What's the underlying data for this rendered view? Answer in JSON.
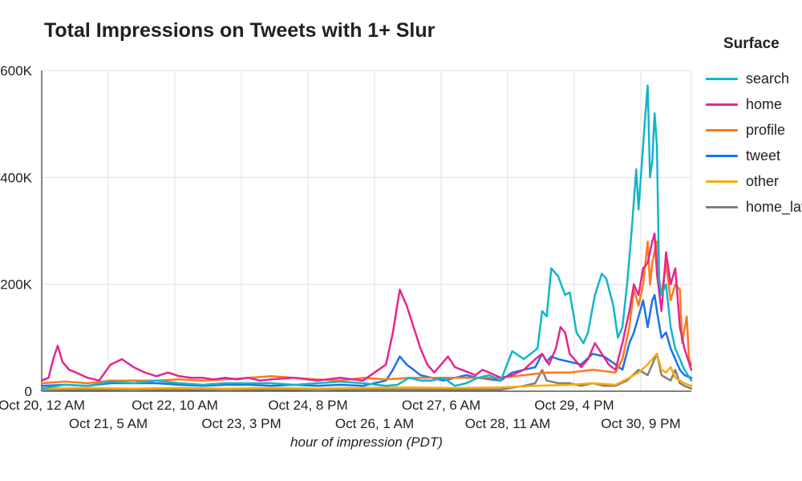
{
  "chart_data": {
    "type": "line",
    "title": "Total Impressions on Tweets with 1+ Slur",
    "xlabel": "hour of impression (PDT)",
    "ylabel": "",
    "legend_title": "Surface",
    "legend_position": "right",
    "grid": true,
    "x_tick_labels": [
      "Oct 20, 12 AM",
      "Oct 21, 5 AM",
      "Oct 22, 10 AM",
      "Oct 23, 3 PM",
      "Oct 24, 8 PM",
      "Oct 26, 1 AM",
      "Oct 27, 6 AM",
      "Oct 28, 11 AM",
      "Oct 29, 4 PM",
      "Oct 30, 9 PM"
    ],
    "y_tick_labels": [
      "0",
      "200K",
      "400K",
      "600K"
    ],
    "ylim": [
      0,
      600000
    ],
    "x_range_hours": [
      0,
      283
    ],
    "series": [
      {
        "name": "search",
        "color": "#12b5cb",
        "points": [
          [
            0,
            5000
          ],
          [
            10,
            12000
          ],
          [
            20,
            10000
          ],
          [
            30,
            18000
          ],
          [
            40,
            15000
          ],
          [
            50,
            20000
          ],
          [
            60,
            15000
          ],
          [
            70,
            12000
          ],
          [
            80,
            15000
          ],
          [
            90,
            15000
          ],
          [
            100,
            15000
          ],
          [
            110,
            12000
          ],
          [
            120,
            15000
          ],
          [
            130,
            18000
          ],
          [
            140,
            15000
          ],
          [
            150,
            10000
          ],
          [
            155,
            12000
          ],
          [
            160,
            25000
          ],
          [
            165,
            20000
          ],
          [
            170,
            20000
          ],
          [
            175,
            25000
          ],
          [
            180,
            10000
          ],
          [
            185,
            15000
          ],
          [
            190,
            25000
          ],
          [
            195,
            30000
          ],
          [
            200,
            20000
          ],
          [
            205,
            75000
          ],
          [
            210,
            60000
          ],
          [
            213,
            70000
          ],
          [
            216,
            80000
          ],
          [
            218,
            150000
          ],
          [
            220,
            140000
          ],
          [
            222,
            230000
          ],
          [
            225,
            215000
          ],
          [
            228,
            180000
          ],
          [
            230,
            185000
          ],
          [
            233,
            110000
          ],
          [
            236,
            90000
          ],
          [
            238,
            110000
          ],
          [
            241,
            180000
          ],
          [
            244,
            220000
          ],
          [
            246,
            210000
          ],
          [
            249,
            160000
          ],
          [
            251,
            100000
          ],
          [
            253,
            120000
          ],
          [
            255,
            200000
          ],
          [
            257,
            300000
          ],
          [
            259,
            415000
          ],
          [
            260,
            340000
          ],
          [
            261,
            400000
          ],
          [
            263,
            520000
          ],
          [
            264,
            572000
          ],
          [
            265,
            400000
          ],
          [
            266,
            430000
          ],
          [
            267,
            520000
          ],
          [
            268,
            460000
          ],
          [
            269,
            210000
          ],
          [
            270,
            180000
          ],
          [
            272,
            200000
          ],
          [
            274,
            120000
          ],
          [
            276,
            80000
          ],
          [
            278,
            60000
          ],
          [
            280,
            40000
          ],
          [
            283,
            20000
          ]
        ]
      },
      {
        "name": "home",
        "color": "#e52592",
        "points": [
          [
            0,
            20000
          ],
          [
            3,
            25000
          ],
          [
            5,
            60000
          ],
          [
            7,
            85000
          ],
          [
            9,
            55000
          ],
          [
            12,
            40000
          ],
          [
            15,
            35000
          ],
          [
            20,
            25000
          ],
          [
            25,
            20000
          ],
          [
            30,
            50000
          ],
          [
            35,
            60000
          ],
          [
            40,
            45000
          ],
          [
            45,
            35000
          ],
          [
            50,
            28000
          ],
          [
            55,
            35000
          ],
          [
            60,
            28000
          ],
          [
            65,
            25000
          ],
          [
            70,
            25000
          ],
          [
            75,
            22000
          ],
          [
            80,
            25000
          ],
          [
            85,
            22000
          ],
          [
            90,
            25000
          ],
          [
            95,
            20000
          ],
          [
            100,
            22000
          ],
          [
            110,
            25000
          ],
          [
            120,
            20000
          ],
          [
            130,
            25000
          ],
          [
            140,
            20000
          ],
          [
            145,
            35000
          ],
          [
            150,
            50000
          ],
          [
            153,
            110000
          ],
          [
            156,
            190000
          ],
          [
            159,
            160000
          ],
          [
            162,
            120000
          ],
          [
            165,
            80000
          ],
          [
            168,
            50000
          ],
          [
            171,
            35000
          ],
          [
            174,
            50000
          ],
          [
            177,
            65000
          ],
          [
            180,
            45000
          ],
          [
            183,
            40000
          ],
          [
            186,
            35000
          ],
          [
            189,
            30000
          ],
          [
            192,
            40000
          ],
          [
            195,
            35000
          ],
          [
            200,
            25000
          ],
          [
            205,
            30000
          ],
          [
            210,
            40000
          ],
          [
            215,
            60000
          ],
          [
            218,
            70000
          ],
          [
            221,
            50000
          ],
          [
            224,
            80000
          ],
          [
            226,
            120000
          ],
          [
            228,
            110000
          ],
          [
            230,
            70000
          ],
          [
            232,
            60000
          ],
          [
            235,
            45000
          ],
          [
            238,
            60000
          ],
          [
            241,
            90000
          ],
          [
            244,
            70000
          ],
          [
            247,
            50000
          ],
          [
            250,
            40000
          ],
          [
            253,
            90000
          ],
          [
            256,
            150000
          ],
          [
            258,
            200000
          ],
          [
            260,
            180000
          ],
          [
            262,
            230000
          ],
          [
            264,
            240000
          ],
          [
            266,
            280000
          ],
          [
            267,
            295000
          ],
          [
            268,
            220000
          ],
          [
            270,
            150000
          ],
          [
            272,
            260000
          ],
          [
            274,
            200000
          ],
          [
            276,
            230000
          ],
          [
            278,
            120000
          ],
          [
            280,
            80000
          ],
          [
            283,
            40000
          ]
        ]
      },
      {
        "name": "profile",
        "color": "#ff7a1a",
        "points": [
          [
            0,
            15000
          ],
          [
            10,
            18000
          ],
          [
            20,
            15000
          ],
          [
            30,
            20000
          ],
          [
            40,
            20000
          ],
          [
            50,
            20000
          ],
          [
            60,
            22000
          ],
          [
            70,
            20000
          ],
          [
            80,
            22000
          ],
          [
            90,
            25000
          ],
          [
            100,
            28000
          ],
          [
            110,
            25000
          ],
          [
            120,
            22000
          ],
          [
            130,
            20000
          ],
          [
            140,
            25000
          ],
          [
            150,
            22000
          ],
          [
            160,
            25000
          ],
          [
            170,
            25000
          ],
          [
            180,
            25000
          ],
          [
            190,
            25000
          ],
          [
            200,
            25000
          ],
          [
            210,
            30000
          ],
          [
            220,
            35000
          ],
          [
            230,
            35000
          ],
          [
            240,
            40000
          ],
          [
            250,
            35000
          ],
          [
            253,
            60000
          ],
          [
            256,
            120000
          ],
          [
            258,
            190000
          ],
          [
            260,
            160000
          ],
          [
            262,
            200000
          ],
          [
            264,
            280000
          ],
          [
            265,
            200000
          ],
          [
            266,
            240000
          ],
          [
            268,
            280000
          ],
          [
            269,
            200000
          ],
          [
            270,
            180000
          ],
          [
            272,
            240000
          ],
          [
            274,
            170000
          ],
          [
            276,
            200000
          ],
          [
            278,
            190000
          ],
          [
            279,
            90000
          ],
          [
            281,
            140000
          ],
          [
            282,
            60000
          ],
          [
            283,
            50000
          ]
        ]
      },
      {
        "name": "tweet",
        "color": "#1a73e8",
        "points": [
          [
            0,
            10000
          ],
          [
            10,
            12000
          ],
          [
            20,
            10000
          ],
          [
            30,
            15000
          ],
          [
            40,
            15000
          ],
          [
            50,
            15000
          ],
          [
            60,
            12000
          ],
          [
            70,
            10000
          ],
          [
            80,
            12000
          ],
          [
            90,
            12000
          ],
          [
            100,
            10000
          ],
          [
            110,
            12000
          ],
          [
            120,
            10000
          ],
          [
            130,
            12000
          ],
          [
            140,
            10000
          ],
          [
            150,
            20000
          ],
          [
            153,
            40000
          ],
          [
            156,
            65000
          ],
          [
            159,
            50000
          ],
          [
            162,
            40000
          ],
          [
            165,
            30000
          ],
          [
            170,
            25000
          ],
          [
            175,
            20000
          ],
          [
            180,
            25000
          ],
          [
            185,
            30000
          ],
          [
            190,
            25000
          ],
          [
            200,
            20000
          ],
          [
            205,
            35000
          ],
          [
            210,
            40000
          ],
          [
            215,
            45000
          ],
          [
            218,
            70000
          ],
          [
            220,
            55000
          ],
          [
            222,
            65000
          ],
          [
            225,
            60000
          ],
          [
            230,
            55000
          ],
          [
            235,
            50000
          ],
          [
            240,
            70000
          ],
          [
            245,
            65000
          ],
          [
            250,
            50000
          ],
          [
            253,
            40000
          ],
          [
            256,
            90000
          ],
          [
            258,
            110000
          ],
          [
            260,
            140000
          ],
          [
            262,
            170000
          ],
          [
            264,
            120000
          ],
          [
            266,
            170000
          ],
          [
            267,
            180000
          ],
          [
            268,
            150000
          ],
          [
            270,
            100000
          ],
          [
            272,
            110000
          ],
          [
            274,
            80000
          ],
          [
            276,
            60000
          ],
          [
            278,
            40000
          ],
          [
            280,
            30000
          ],
          [
            283,
            25000
          ]
        ]
      },
      {
        "name": "other",
        "color": "#f9ab00",
        "points": [
          [
            0,
            5000
          ],
          [
            20,
            6000
          ],
          [
            40,
            5000
          ],
          [
            60,
            6000
          ],
          [
            80,
            5000
          ],
          [
            100,
            6000
          ],
          [
            120,
            5000
          ],
          [
            140,
            6000
          ],
          [
            160,
            7000
          ],
          [
            180,
            6000
          ],
          [
            200,
            7000
          ],
          [
            215,
            10000
          ],
          [
            230,
            12000
          ],
          [
            240,
            15000
          ],
          [
            250,
            12000
          ],
          [
            256,
            25000
          ],
          [
            260,
            35000
          ],
          [
            264,
            50000
          ],
          [
            266,
            60000
          ],
          [
            268,
            70000
          ],
          [
            270,
            40000
          ],
          [
            272,
            35000
          ],
          [
            274,
            45000
          ],
          [
            276,
            25000
          ],
          [
            278,
            20000
          ],
          [
            280,
            15000
          ],
          [
            283,
            10000
          ]
        ]
      },
      {
        "name": "home_latest",
        "color": "#7f7f7f",
        "points": [
          [
            0,
            2000
          ],
          [
            20,
            3000
          ],
          [
            40,
            2000
          ],
          [
            60,
            3000
          ],
          [
            80,
            2000
          ],
          [
            100,
            3000
          ],
          [
            120,
            2000
          ],
          [
            140,
            3000
          ],
          [
            160,
            3000
          ],
          [
            180,
            3000
          ],
          [
            200,
            3000
          ],
          [
            210,
            10000
          ],
          [
            215,
            15000
          ],
          [
            218,
            40000
          ],
          [
            220,
            20000
          ],
          [
            225,
            15000
          ],
          [
            230,
            15000
          ],
          [
            235,
            10000
          ],
          [
            240,
            15000
          ],
          [
            245,
            10000
          ],
          [
            250,
            10000
          ],
          [
            255,
            20000
          ],
          [
            260,
            40000
          ],
          [
            264,
            30000
          ],
          [
            266,
            50000
          ],
          [
            268,
            70000
          ],
          [
            270,
            30000
          ],
          [
            272,
            25000
          ],
          [
            274,
            20000
          ],
          [
            276,
            40000
          ],
          [
            278,
            15000
          ],
          [
            280,
            10000
          ],
          [
            283,
            5000
          ]
        ]
      }
    ]
  }
}
